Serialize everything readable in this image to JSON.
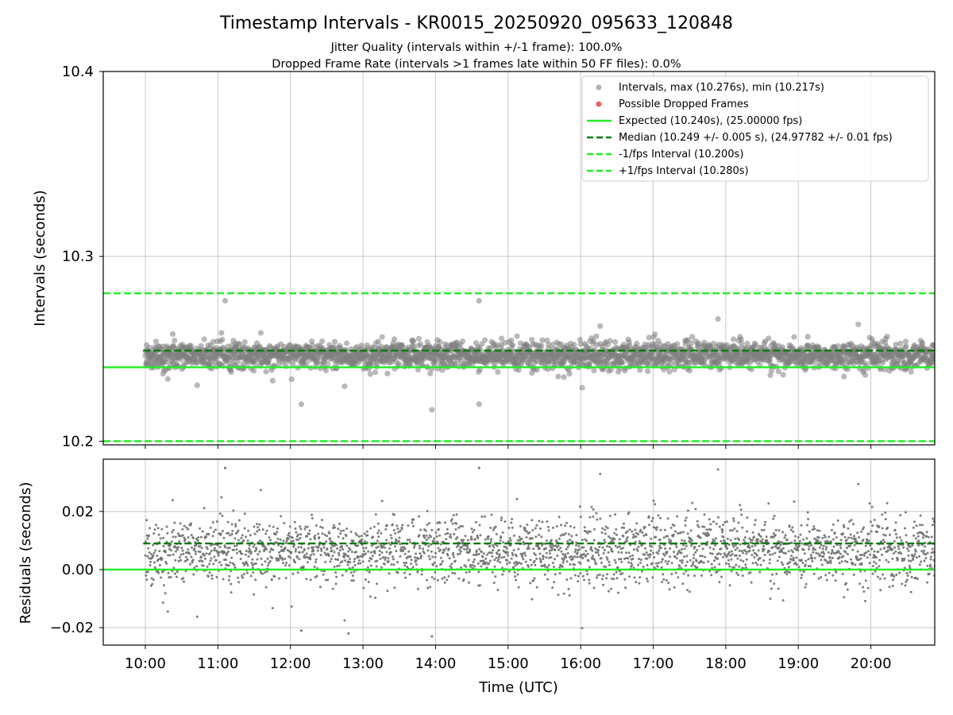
{
  "chart_data": [
    {
      "type": "scatter",
      "panel": "intervals",
      "title": "Timestamp Intervals - KR0015_20250920_095633_120848",
      "subtitles": [
        "Jitter Quality (intervals within +/-1 frame): 100.0%",
        "Dropped Frame Rate (intervals >1 frames late within 50 FF files): 0.0%"
      ],
      "ylabel": "Intervals (seconds)",
      "ylim": [
        10.198,
        10.4
      ],
      "yticks": [
        10.2,
        10.3,
        10.4
      ],
      "ytick_labels": [
        "10.2",
        "10.3",
        "10.4"
      ],
      "xlim_hours": [
        9.42,
        20.88
      ],
      "grid": true,
      "series": [
        {
          "name": "Intervals, max (10.276s), min (10.217s)",
          "kind": "scatter",
          "color": "#808080",
          "x_range_hours": [
            10.0,
            20.88
          ],
          "center": 10.2465,
          "spread": 0.006,
          "max": 10.276,
          "min": 10.217
        },
        {
          "name": "Possible Dropped Frames",
          "kind": "scatter",
          "color": "#f06060",
          "points": []
        }
      ],
      "lines": [
        {
          "name": "Expected (10.240s), (25.00000 fps)",
          "y": 10.24,
          "color": "#22ee22",
          "style": "solid"
        },
        {
          "name": "Median (10.249 +/- 0.005 s), (24.97782 +/- 0.01 fps)",
          "y": 10.249,
          "color": "#0b7a0b",
          "style": "dashed"
        },
        {
          "name": "-1/fps Interval (10.200s)",
          "y": 10.2,
          "color": "#22ee22",
          "style": "dashed"
        },
        {
          "name": "+1/fps Interval (10.280s)",
          "y": 10.28,
          "color": "#22ee22",
          "style": "dashed"
        }
      ],
      "legend_position": "top-right",
      "legend_entries": [
        "Intervals, max (10.276s), min (10.217s)",
        "Possible Dropped Frames",
        "Expected (10.240s), (25.00000 fps)",
        "Median (10.249 +/- 0.005 s), (24.97782 +/- 0.01 fps)",
        "-1/fps Interval (10.200s)",
        "+1/fps Interval (10.280s)"
      ]
    },
    {
      "type": "scatter",
      "panel": "residuals",
      "ylabel": "Residuals (seconds)",
      "xlabel": "Time (UTC)",
      "ylim": [
        -0.026,
        0.038
      ],
      "yticks": [
        -0.02,
        0.0,
        0.02
      ],
      "ytick_labels": [
        "−0.02",
        "0.00",
        "0.02"
      ],
      "xlim_hours": [
        9.42,
        20.88
      ],
      "xticks_hours": [
        10,
        11,
        12,
        13,
        14,
        15,
        16,
        17,
        18,
        19,
        20
      ],
      "xtick_labels": [
        "10:00",
        "11:00",
        "12:00",
        "13:00",
        "14:00",
        "15:00",
        "16:00",
        "17:00",
        "18:00",
        "19:00",
        "20:00"
      ],
      "grid": true,
      "series": [
        {
          "name": "Residuals",
          "kind": "scatter",
          "color": "#707070",
          "x_range_hours": [
            10.0,
            20.88
          ],
          "center": 0.0065,
          "spread": 0.006,
          "max": 0.036,
          "min": -0.023
        }
      ],
      "lines": [
        {
          "name": "Zero",
          "y": 0.0,
          "color": "#22ee22",
          "style": "solid"
        },
        {
          "name": "Median offset",
          "y": 0.009,
          "color": "#0b7a0b",
          "style": "dashed"
        }
      ]
    }
  ]
}
